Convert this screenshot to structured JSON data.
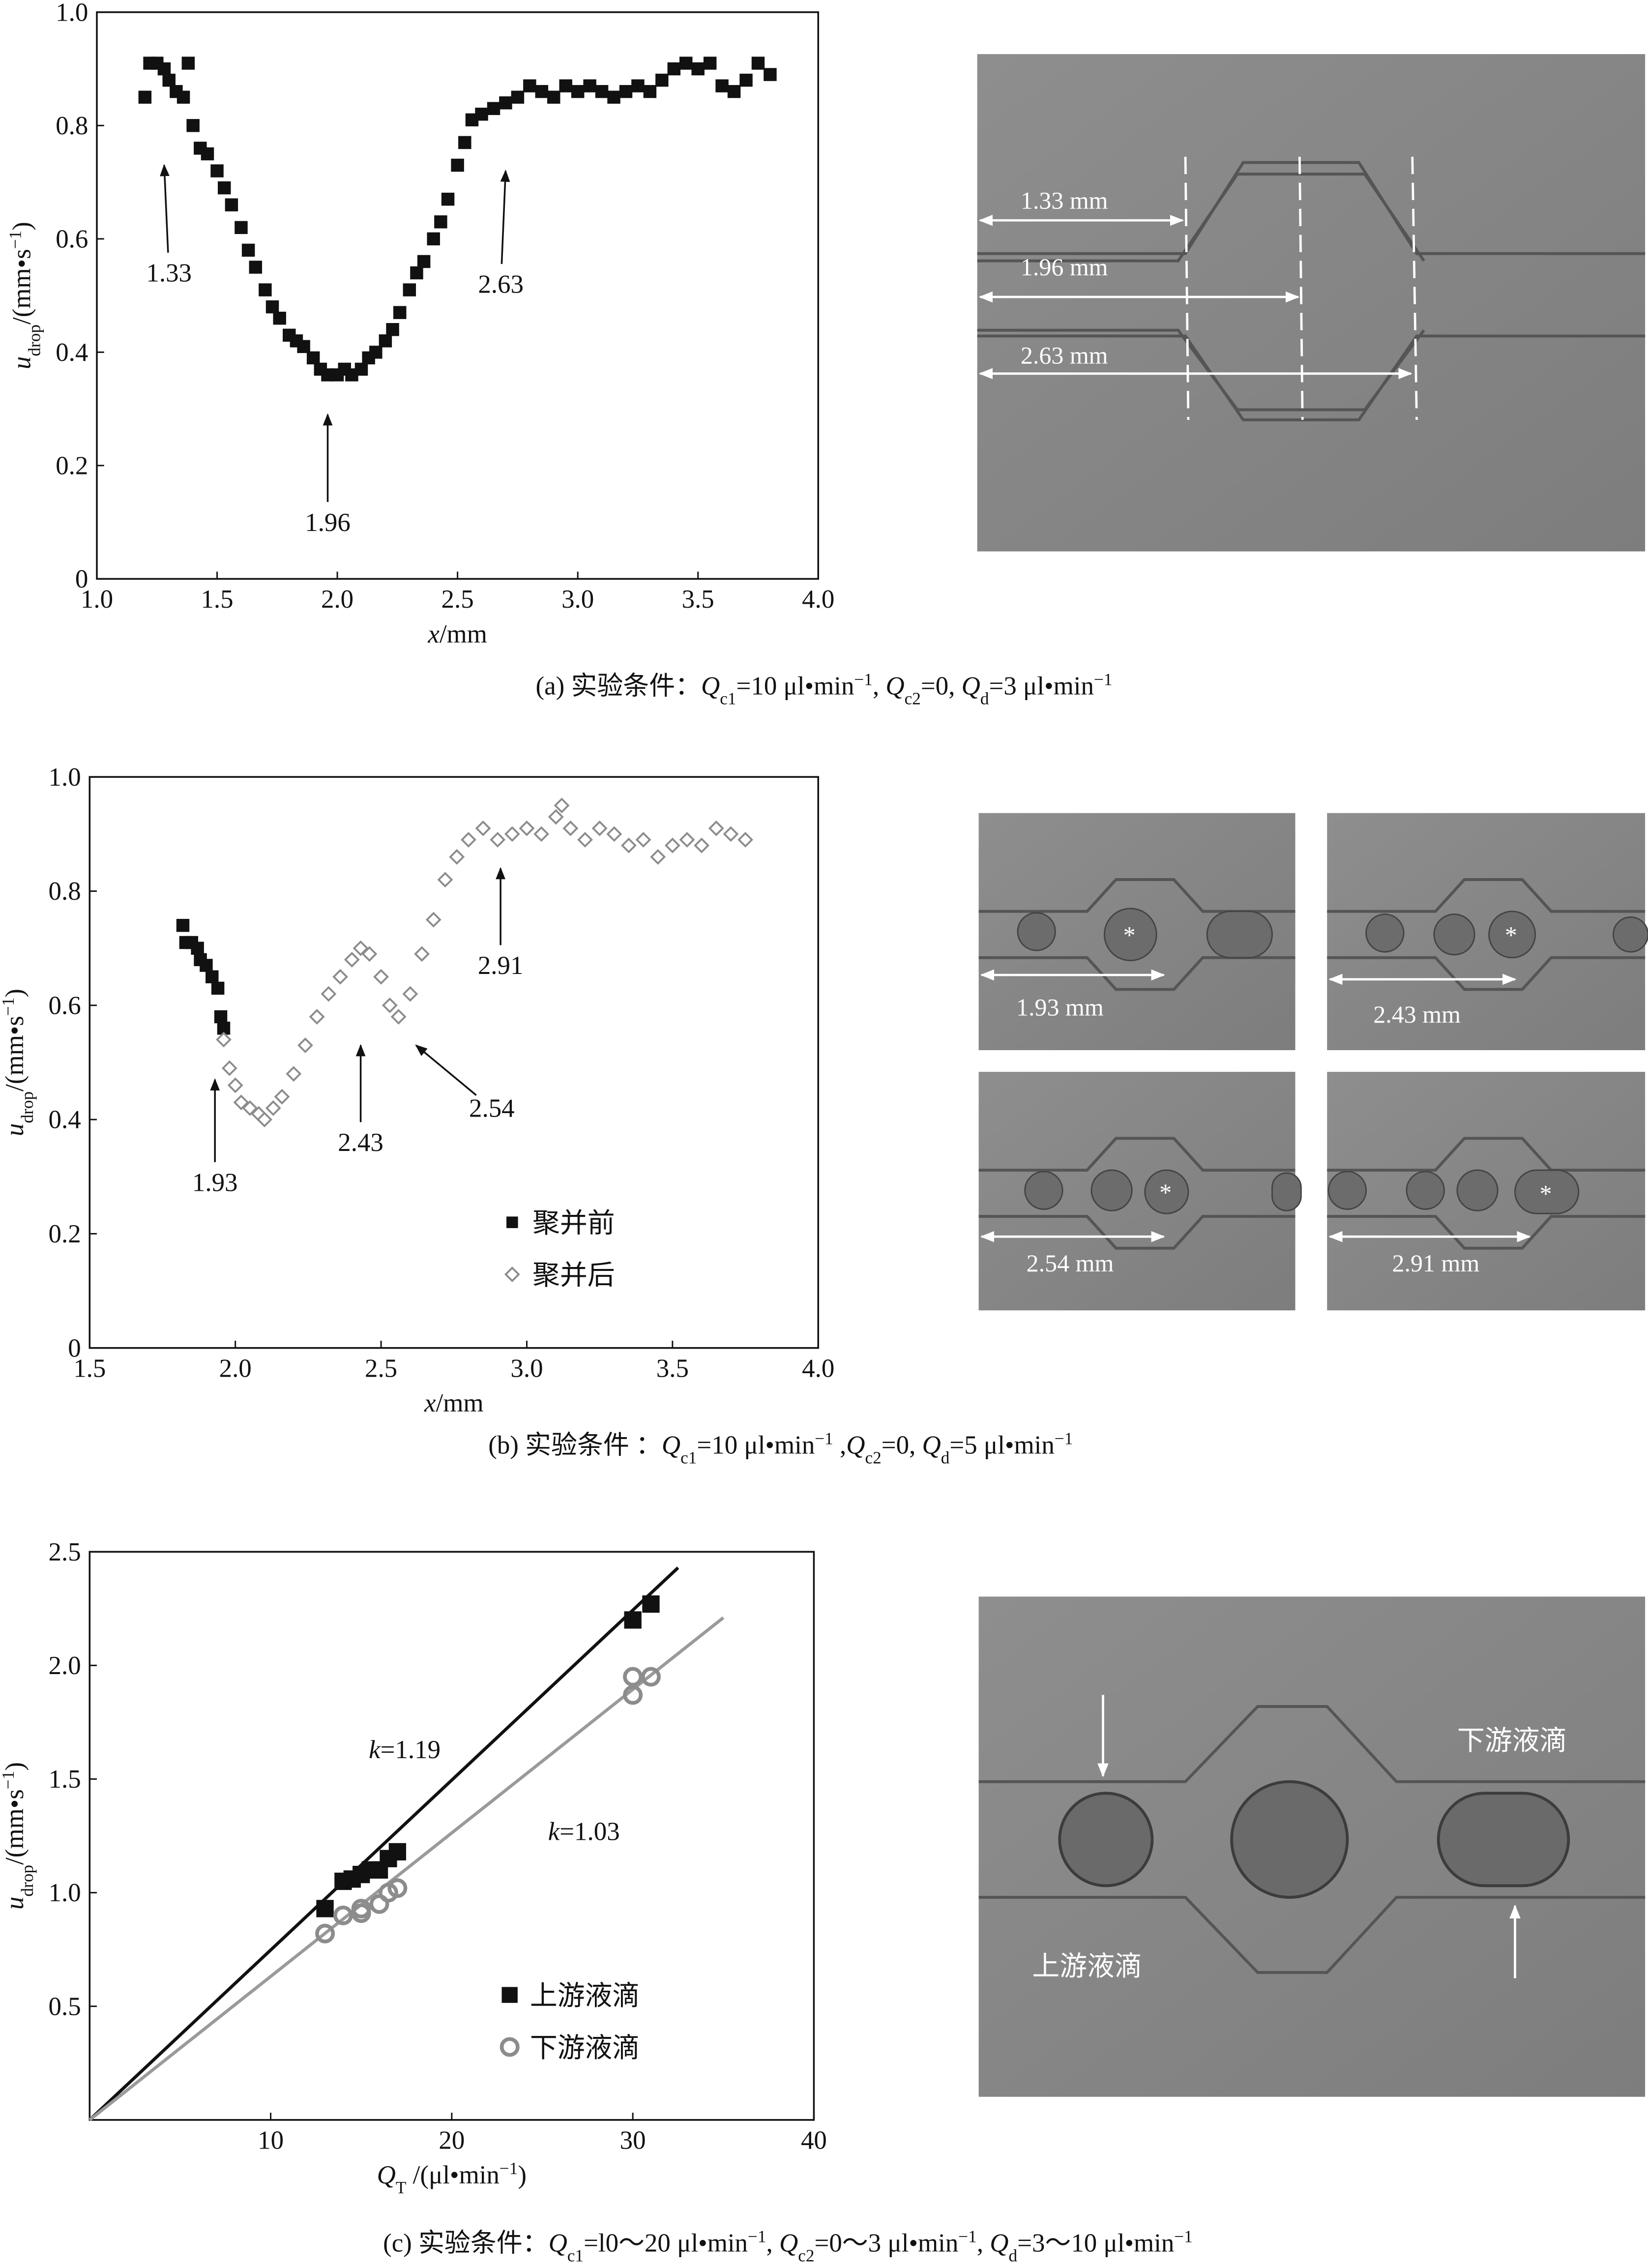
{
  "chart_data": [
    {
      "type": "scatter",
      "xlabel": [
        [
          "x",
          "i"
        ],
        [
          "/mm",
          "n"
        ]
      ],
      "ylabel": [
        [
          "u",
          "i"
        ],
        [
          "drop",
          "sub"
        ],
        [
          "/(mm•s",
          "n"
        ],
        [
          "−1",
          "sup"
        ],
        [
          ")",
          "n"
        ]
      ],
      "caption": [
        [
          "(a) 实验条件：",
          "n"
        ],
        [
          "Q",
          "i"
        ],
        [
          "c1",
          "sub"
        ],
        [
          "=10 μl•min",
          "n"
        ],
        [
          "−1",
          "sup"
        ],
        [
          ", ",
          "n"
        ],
        [
          "Q",
          "i"
        ],
        [
          "c2",
          "sub"
        ],
        [
          "=0, ",
          "n"
        ],
        [
          "Q",
          "i"
        ],
        [
          "d",
          "sub"
        ],
        [
          "=3 μl•min",
          "n"
        ],
        [
          "−1",
          "sup"
        ]
      ],
      "xlim": [
        1,
        4
      ],
      "xticks": [
        {
          "value": 1,
          "label": "1.0"
        },
        1.5,
        {
          "value": 2,
          "label": "2.0"
        },
        2.5,
        {
          "value": 3,
          "label": "3.0"
        },
        3.5,
        {
          "value": 4,
          "label": "4.0"
        }
      ],
      "ylim": [
        0,
        1
      ],
      "yticks": [
        0,
        0.2,
        0.4,
        0.6,
        0.8,
        {
          "value": 1,
          "label": "1.0"
        }
      ],
      "series": [
        {
          "mode": "markers",
          "marker": "square",
          "color": "#111111",
          "x": [
            1.2,
            1.22,
            1.25,
            1.28,
            1.3,
            1.33,
            1.36,
            1.38,
            1.4,
            1.43,
            1.46,
            1.5,
            1.53,
            1.56,
            1.6,
            1.63,
            1.66,
            1.7,
            1.73,
            1.76,
            1.8,
            1.83,
            1.86,
            1.9,
            1.93,
            1.96,
            2.0,
            2.03,
            2.06,
            2.1,
            2.13,
            2.16,
            2.2,
            2.23,
            2.26,
            2.3,
            2.33,
            2.36,
            2.4,
            2.43,
            2.46,
            2.5,
            2.53,
            2.56,
            2.6,
            2.65,
            2.7,
            2.75,
            2.8,
            2.85,
            2.9,
            2.95,
            3.0,
            3.05,
            3.1,
            3.15,
            3.2,
            3.25,
            3.3,
            3.35,
            3.4,
            3.45,
            3.5,
            3.55,
            3.6,
            3.65,
            3.7,
            3.75,
            3.8
          ],
          "values": [
            0.85,
            0.91,
            0.91,
            0.9,
            0.88,
            0.86,
            0.85,
            0.91,
            0.8,
            0.76,
            0.75,
            0.72,
            0.69,
            0.66,
            0.62,
            0.58,
            0.55,
            0.51,
            0.48,
            0.46,
            0.43,
            0.42,
            0.41,
            0.39,
            0.37,
            0.36,
            0.36,
            0.37,
            0.36,
            0.37,
            0.39,
            0.4,
            0.42,
            0.44,
            0.47,
            0.51,
            0.54,
            0.56,
            0.6,
            0.63,
            0.67,
            0.73,
            0.77,
            0.81,
            0.82,
            0.83,
            0.84,
            0.85,
            0.87,
            0.86,
            0.85,
            0.87,
            0.86,
            0.87,
            0.86,
            0.85,
            0.86,
            0.87,
            0.86,
            0.88,
            0.9,
            0.91,
            0.9,
            0.91,
            0.87,
            0.86,
            0.88,
            0.91,
            0.89
          ]
        }
      ],
      "annotations": [
        {
          "text": "1.33",
          "x": 1.28,
          "y": 0.73,
          "label_x": 1.3,
          "label_y": 0.54
        },
        {
          "text": "1.96",
          "x": 1.96,
          "y": 0.29,
          "label_x": 1.96,
          "label_y": 0.1
        },
        {
          "text": "2.63",
          "x": 2.7,
          "y": 0.72,
          "label_x": 2.68,
          "label_y": 0.52
        }
      ]
    },
    {
      "type": "scatter",
      "xlabel": [
        [
          "x",
          "i"
        ],
        [
          "/mm",
          "n"
        ]
      ],
      "ylabel": [
        [
          "u",
          "i"
        ],
        [
          "drop",
          "sub"
        ],
        [
          "/(mm•s",
          "n"
        ],
        [
          "−1",
          "sup"
        ],
        [
          ")",
          "n"
        ]
      ],
      "caption": [
        [
          "(b) 实验条件 ：",
          "n"
        ],
        [
          "Q",
          "i"
        ],
        [
          "c1",
          "sub"
        ],
        [
          "=10  μl•min",
          "n"
        ],
        [
          "−1",
          "sup"
        ],
        [
          " ,",
          "n"
        ],
        [
          "Q",
          "i"
        ],
        [
          "c2",
          "sub"
        ],
        [
          "=0, ",
          "n"
        ],
        [
          "Q",
          "i"
        ],
        [
          "d",
          "sub"
        ],
        [
          "=5 μl•min",
          "n"
        ],
        [
          "−1",
          "sup"
        ]
      ],
      "xlim": [
        1.5,
        4
      ],
      "xticks": [
        1.5,
        {
          "value": 2,
          "label": "2.0"
        },
        2.5,
        {
          "value": 3,
          "label": "3.0"
        },
        3.5,
        {
          "value": 4,
          "label": "4.0"
        }
      ],
      "ylim": [
        0,
        1
      ],
      "yticks": [
        0,
        0.2,
        0.4,
        0.6,
        0.8,
        {
          "value": 1,
          "label": "1.0"
        }
      ],
      "legend": "lower center",
      "series": [
        {
          "name": "聚并前",
          "mode": "markers",
          "marker": "square",
          "color": "#111111",
          "x": [
            1.82,
            1.83,
            1.85,
            1.87,
            1.88,
            1.9,
            1.92,
            1.94,
            1.95,
            1.96
          ],
          "values": [
            0.74,
            0.71,
            0.71,
            0.7,
            0.68,
            0.67,
            0.65,
            0.63,
            0.58,
            0.56
          ]
        },
        {
          "name": "聚并后",
          "mode": "markers",
          "marker": "diamond",
          "color": "#8c8c8c",
          "x": [
            1.96,
            1.98,
            2.0,
            2.02,
            2.05,
            2.08,
            2.1,
            2.13,
            2.16,
            2.2,
            2.24,
            2.28,
            2.32,
            2.36,
            2.4,
            2.43,
            2.46,
            2.5,
            2.53,
            2.56,
            2.6,
            2.64,
            2.68,
            2.72,
            2.76,
            2.8,
            2.85,
            2.9,
            2.95,
            3.0,
            3.05,
            3.1,
            3.12,
            3.15,
            3.2,
            3.25,
            3.3,
            3.35,
            3.4,
            3.45,
            3.5,
            3.55,
            3.6,
            3.65,
            3.7,
            3.75
          ],
          "values": [
            0.54,
            0.49,
            0.46,
            0.43,
            0.42,
            0.41,
            0.4,
            0.42,
            0.44,
            0.48,
            0.53,
            0.58,
            0.62,
            0.65,
            0.68,
            0.7,
            0.69,
            0.65,
            0.6,
            0.58,
            0.62,
            0.69,
            0.75,
            0.82,
            0.86,
            0.89,
            0.91,
            0.89,
            0.9,
            0.91,
            0.9,
            0.93,
            0.95,
            0.91,
            0.89,
            0.91,
            0.9,
            0.88,
            0.89,
            0.86,
            0.88,
            0.89,
            0.88,
            0.91,
            0.9,
            0.89
          ]
        }
      ],
      "annotations": [
        {
          "text": "1.93",
          "x": 1.93,
          "y": 0.47,
          "label_x": 1.93,
          "label_y": 0.29
        },
        {
          "text": "2.43",
          "x": 2.43,
          "y": 0.53,
          "label_x": 2.43,
          "label_y": 0.36
        },
        {
          "text": "2.54",
          "x": 2.62,
          "y": 0.53,
          "label_x": 2.88,
          "label_y": 0.42
        },
        {
          "text": "2.91",
          "x": 2.91,
          "y": 0.84,
          "label_x": 2.91,
          "label_y": 0.67
        }
      ]
    },
    {
      "type": "scatter",
      "xlabel": [
        [
          "Q",
          "i"
        ],
        [
          "T",
          "sub"
        ],
        [
          " /(μl•min",
          "n"
        ],
        [
          "−1",
          "sup"
        ],
        [
          ")",
          "n"
        ]
      ],
      "ylabel": [
        [
          "u",
          "i"
        ],
        [
          "drop",
          "sub"
        ],
        [
          "/(mm•s",
          "n"
        ],
        [
          "−1",
          "sup"
        ],
        [
          ")",
          "n"
        ]
      ],
      "caption": [
        [
          "(c) 实验条件：",
          "n"
        ],
        [
          "Q",
          "i"
        ],
        [
          "c1",
          "sub"
        ],
        [
          "=l0～20  μl•min",
          "n"
        ],
        [
          "−1",
          "sup"
        ],
        [
          ", ",
          "n"
        ],
        [
          "Q",
          "i"
        ],
        [
          "c2",
          "sub"
        ],
        [
          "=0～3  μl•min",
          "n"
        ],
        [
          "−1",
          "sup"
        ],
        [
          ", ",
          "n"
        ],
        [
          "Q",
          "i"
        ],
        [
          "d",
          "sub"
        ],
        [
          "=3～10  μl•min",
          "n"
        ],
        [
          "−1",
          "sup"
        ]
      ],
      "xlim": [
        0,
        40
      ],
      "xticks": [
        10,
        20,
        30,
        40
      ],
      "ylim": [
        0,
        2.5
      ],
      "yticks": [
        0.5,
        {
          "value": 1,
          "label": "1.0"
        },
        1.5,
        {
          "value": 2,
          "label": "2.0"
        },
        2.5
      ],
      "legend": "lower center",
      "series": [
        {
          "mode": "line",
          "color": "#111111",
          "x": [
            0,
            32.5
          ],
          "values": [
            0,
            2.43
          ]
        },
        {
          "mode": "line",
          "color": "#9a9a9a",
          "x": [
            0,
            35
          ],
          "values": [
            0,
            2.21
          ]
        },
        {
          "name": "上游液滴",
          "mode": "markers",
          "marker": "square",
          "color": "#111111",
          "x": [
            13,
            14,
            14.5,
            15,
            15.5,
            16,
            16.5,
            17,
            30,
            31
          ],
          "values": [
            0.93,
            1.05,
            1.06,
            1.08,
            1.1,
            1.1,
            1.15,
            1.18,
            2.2,
            2.27
          ]
        },
        {
          "name": "下游液滴",
          "mode": "markers",
          "marker": "circle",
          "color": "#8c8c8c",
          "x": [
            13,
            14,
            15,
            15,
            16,
            16.5,
            17,
            30,
            30,
            31
          ],
          "values": [
            0.82,
            0.9,
            0.93,
            0.91,
            0.95,
            1.0,
            1.02,
            1.87,
            1.95,
            1.95
          ]
        }
      ],
      "annotations": [
        {
          "text": [
            [
              "k",
              "i"
            ],
            [
              "=1.19",
              "n"
            ]
          ],
          "label_x": 17.4,
          "label_y": 1.63
        },
        {
          "text": [
            [
              "k",
              "i"
            ],
            [
              "=1.03",
              "n"
            ]
          ],
          "label_x": 27.3,
          "label_y": 1.27
        }
      ]
    }
  ],
  "photos": {
    "a": [
      "1.33  mm",
      "1.96  mm",
      "2.63 mm"
    ],
    "b": [
      "1.93 mm",
      "2.43 mm",
      "2.54 mm",
      "2.91 mm"
    ],
    "b_mark": "*",
    "c": [
      "下游液滴",
      "上游液滴"
    ]
  }
}
